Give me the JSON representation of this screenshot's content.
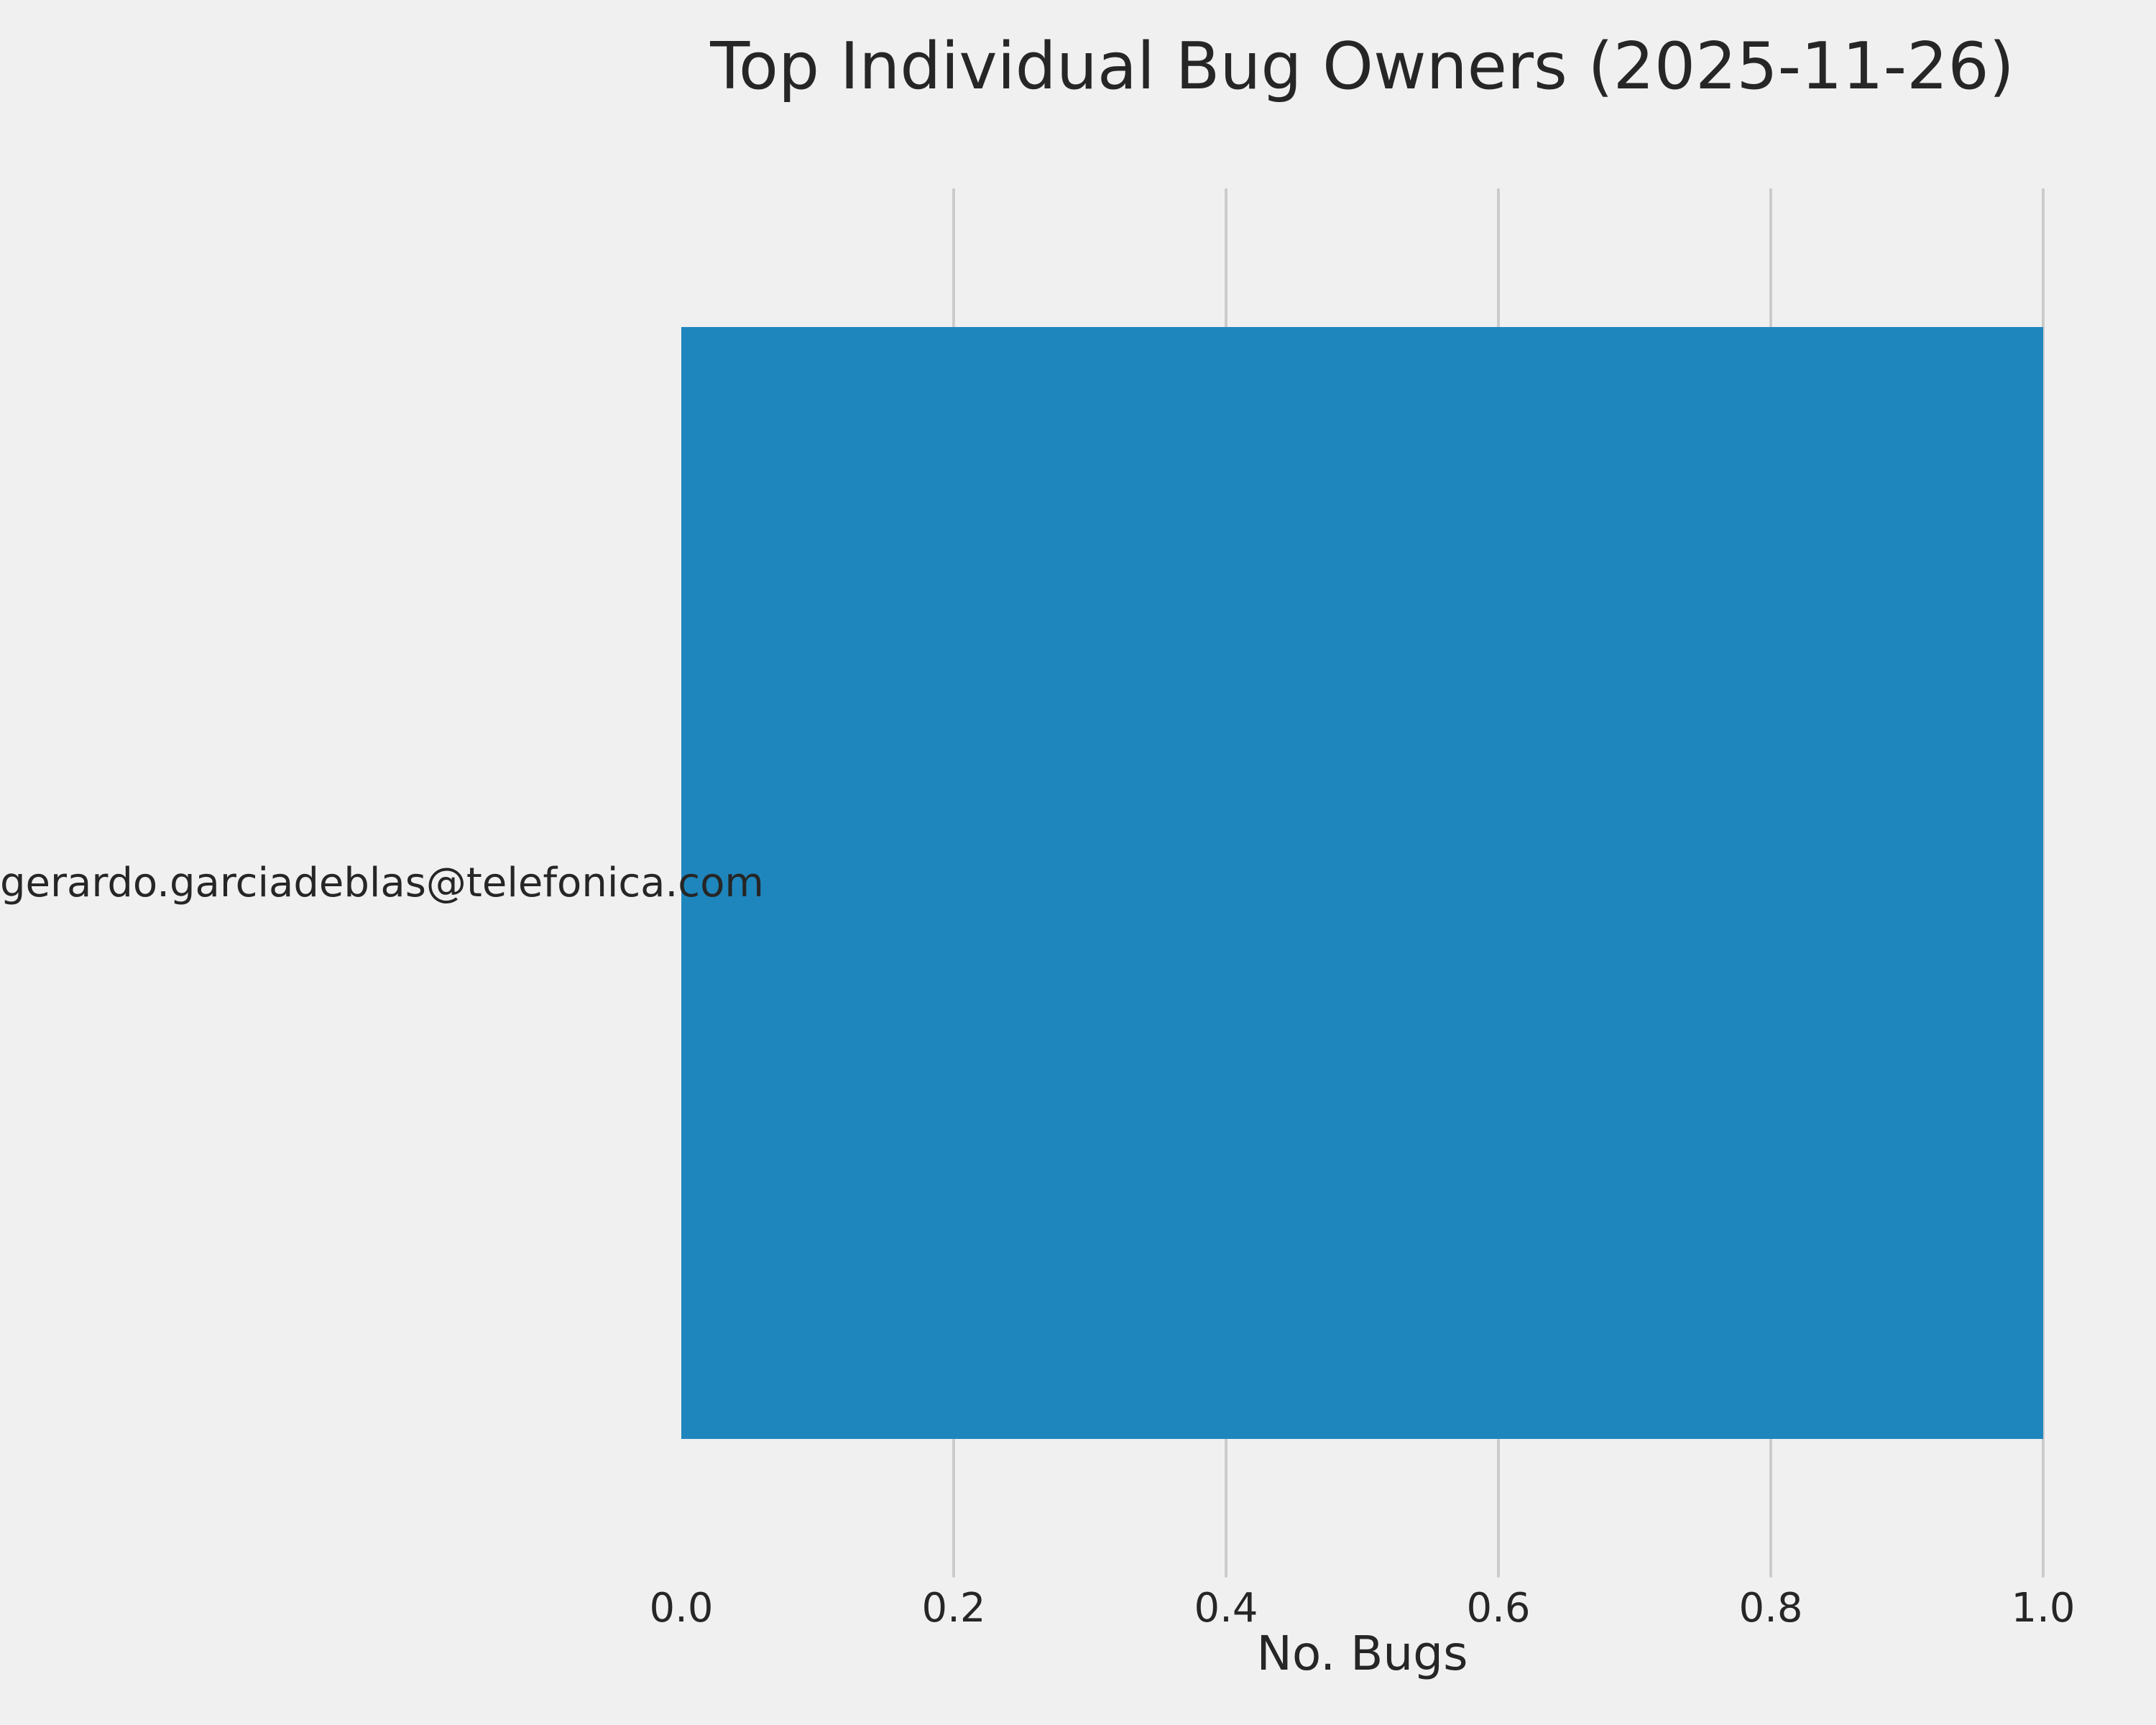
{
  "figure": {
    "background_color": "#f0f0f0",
    "text_color": "#262626"
  },
  "chart_data": {
    "type": "bar",
    "orientation": "horizontal",
    "title": "Top Individual Bug Owners (2025-11-26)",
    "categories": [
      "gerardo.garciadeblas@telefonica.com"
    ],
    "values": [
      1.0
    ],
    "xlabel": "No. Bugs",
    "ylabel": "",
    "xlim": [
      0.0,
      1.0
    ],
    "x_ticks": [
      0.0,
      0.2,
      0.4,
      0.6,
      0.8,
      1.0
    ],
    "x_tick_labels": [
      "0.0",
      "0.2",
      "0.4",
      "0.6",
      "0.8",
      "1.0"
    ],
    "bar_color": "#1e86bd",
    "grid_color": "#cbcbcb",
    "grid": "vertical-only",
    "bar_height_fraction": 0.8,
    "legend": "none"
  }
}
